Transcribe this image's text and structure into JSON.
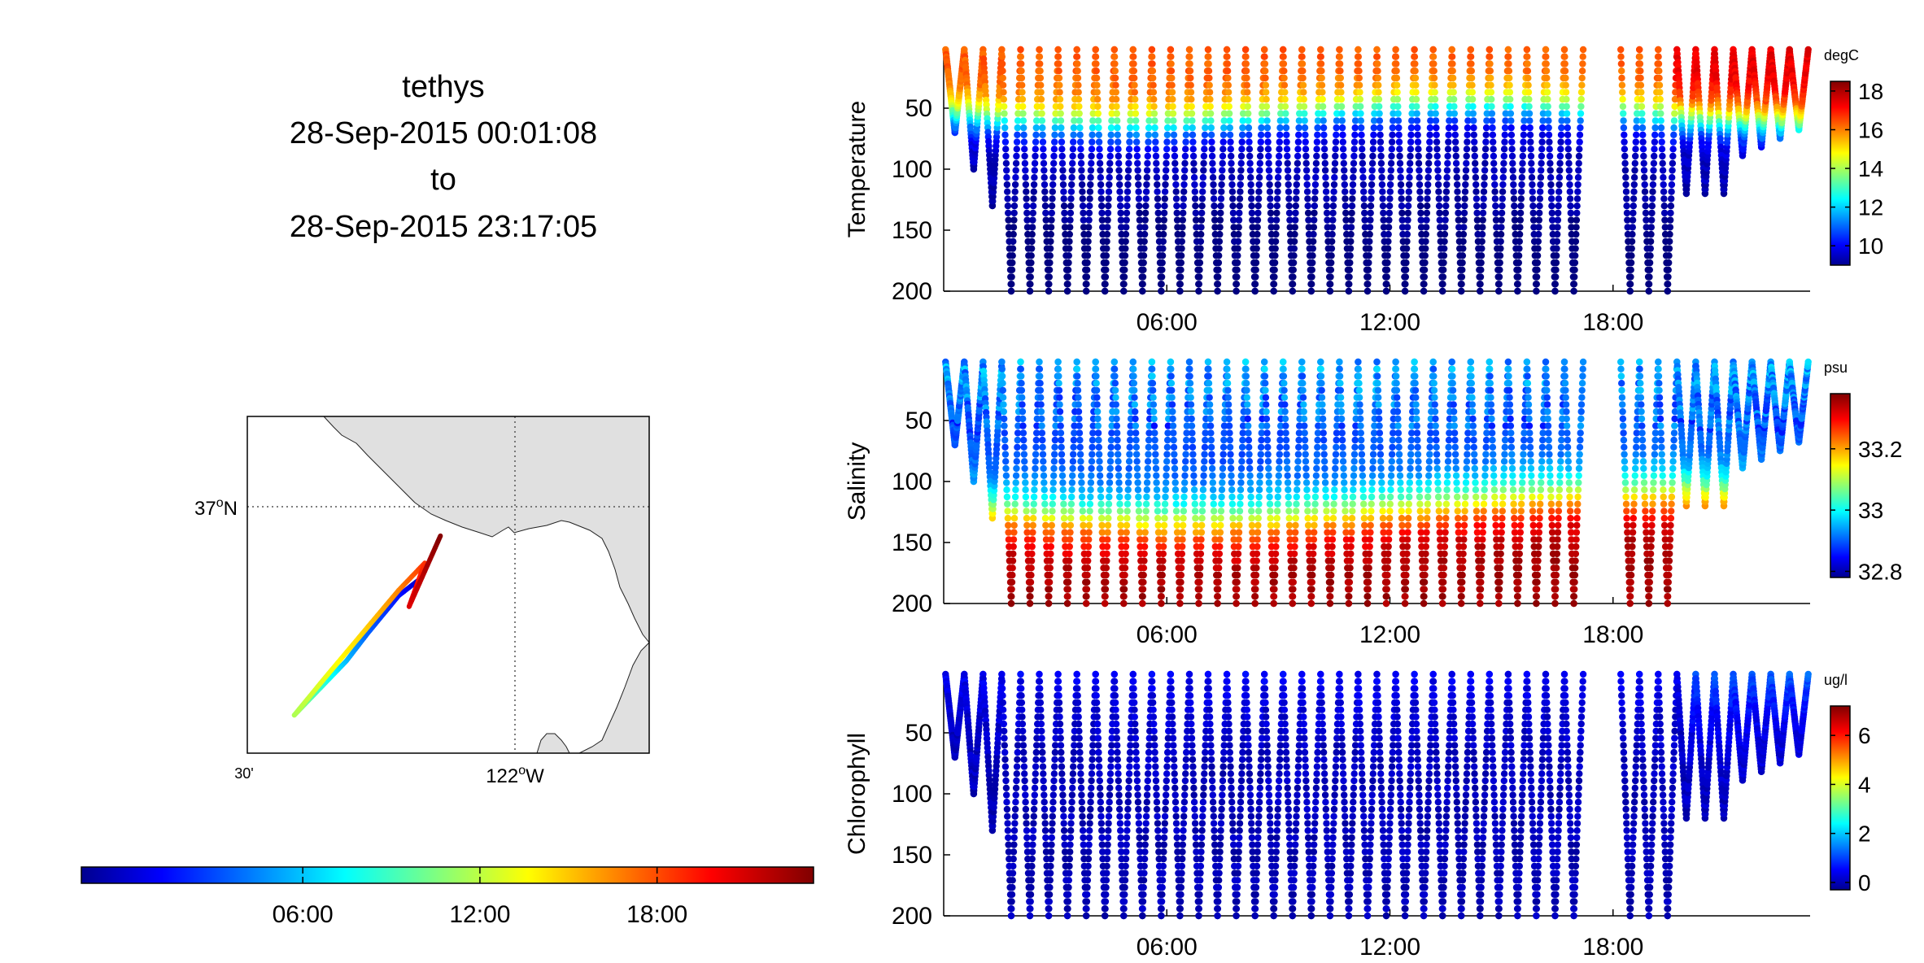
{
  "header": {
    "vehicle": "tethys",
    "start": "28-Sep-2015 00:01:08",
    "to": "to",
    "end": "28-Sep-2015 23:17:05"
  },
  "map": {
    "lat_label": "37°N",
    "lat_label_main": "37",
    "lat_label_unit": "N",
    "lon_label_main": "122",
    "lon_label_unit": "W",
    "lon_minor_label": "30'",
    "lat_line": 37.0,
    "lon_line": -122.0,
    "lon_range": [
      -122.55,
      -121.78
    ],
    "lat_range": [
      36.55,
      37.17
    ],
    "land_color": "#e0e0e0",
    "track": [
      {
        "t": 0.0,
        "lon": -122.22,
        "lat": 36.87
      },
      {
        "t": 2.0,
        "lon": -122.26,
        "lat": 36.84
      },
      {
        "t": 4.0,
        "lon": -122.32,
        "lat": 36.77
      },
      {
        "t": 6.0,
        "lon": -122.36,
        "lat": 36.72
      },
      {
        "t": 8.0,
        "lon": -122.39,
        "lat": 36.69
      },
      {
        "t": 10.0,
        "lon": -122.43,
        "lat": 36.65
      },
      {
        "t": 12.0,
        "lon": -122.46,
        "lat": 36.62
      },
      {
        "t": 13.5,
        "lon": -122.4,
        "lat": 36.69
      },
      {
        "t": 15.0,
        "lon": -122.33,
        "lat": 36.77
      },
      {
        "t": 17.0,
        "lon": -122.26,
        "lat": 36.85
      },
      {
        "t": 19.0,
        "lon": -122.21,
        "lat": 36.9
      },
      {
        "t": 21.0,
        "lon": -122.24,
        "lat": 36.82
      },
      {
        "t": 23.3,
        "lon": -122.18,
        "lat": 36.95
      }
    ]
  },
  "time_colorbar": {
    "ticks": [
      "06:00",
      "12:00",
      "18:00"
    ],
    "tick_hours": [
      6,
      12,
      18
    ],
    "range_hours": [
      -1.5,
      23.3
    ]
  },
  "chart_data": [
    {
      "type": "scatter",
      "name": "temperature",
      "ylabel": "Temperature",
      "units": "degC",
      "x_tick_labels": [
        "06:00",
        "12:00",
        "18:00"
      ],
      "x_tick_hours": [
        6,
        12,
        18
      ],
      "xlim_hours": [
        0,
        23.3
      ],
      "y_ticks": [
        50,
        100,
        150,
        200
      ],
      "ylim": [
        0,
        200
      ],
      "y_reversed": true,
      "colorbar_ticks": [
        10,
        12,
        14,
        16,
        18
      ],
      "clim": [
        9,
        18.5
      ],
      "gap_hours": [
        16.7,
        17.9
      ],
      "profile_model": {
        "surface_value": 16.5,
        "deep_value": 9.5,
        "thermocline_depth": 55,
        "afternoon_surface_value": 17.5
      }
    },
    {
      "type": "scatter",
      "name": "salinity",
      "ylabel": "Salinity",
      "units": "psu",
      "x_tick_labels": [
        "06:00",
        "12:00",
        "18:00"
      ],
      "x_tick_hours": [
        6,
        12,
        18
      ],
      "xlim_hours": [
        0,
        23.3
      ],
      "y_ticks": [
        50,
        100,
        150,
        200
      ],
      "ylim": [
        0,
        200
      ],
      "y_reversed": true,
      "colorbar_ticks": [
        32.8,
        33,
        33.2
      ],
      "clim": [
        32.78,
        33.38
      ],
      "gap_hours": [
        16.7,
        17.9
      ],
      "profile_model": {
        "surface_value": 32.95,
        "mid_value": 32.9,
        "deep_value": 33.36,
        "halocline_depth": 120
      }
    },
    {
      "type": "scatter",
      "name": "chlorophyll",
      "ylabel": "Chlorophyll",
      "units": "ug/l",
      "x_tick_labels": [
        "06:00",
        "12:00",
        "18:00"
      ],
      "x_tick_hours": [
        6,
        12,
        18
      ],
      "xlim_hours": [
        0,
        23.3
      ],
      "y_ticks": [
        50,
        100,
        150,
        200
      ],
      "ylim": [
        0,
        200
      ],
      "y_reversed": true,
      "colorbar_ticks": [
        0,
        2,
        4,
        6
      ],
      "clim": [
        -0.3,
        7.2
      ],
      "gap_hours": [
        16.7,
        17.9
      ],
      "profile_model": {
        "surface_value": 0.6,
        "deep_value": 0.1,
        "late_surface_value": 1.4
      }
    }
  ]
}
